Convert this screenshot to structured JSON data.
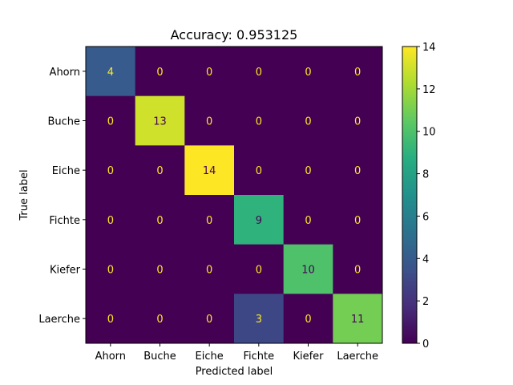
{
  "chart_data": {
    "type": "heatmap",
    "title": "Accuracy: 0.953125",
    "xlabel": "Predicted label",
    "ylabel": "True label",
    "x_categories": [
      "Ahorn",
      "Buche",
      "Eiche",
      "Fichte",
      "Kiefer",
      "Laerche"
    ],
    "y_categories": [
      "Ahorn",
      "Buche",
      "Eiche",
      "Fichte",
      "Kiefer",
      "Laerche"
    ],
    "values": [
      [
        4,
        0,
        0,
        0,
        0,
        0
      ],
      [
        0,
        13,
        0,
        0,
        0,
        0
      ],
      [
        0,
        0,
        14,
        0,
        0,
        0
      ],
      [
        0,
        0,
        0,
        9,
        0,
        0
      ],
      [
        0,
        0,
        0,
        0,
        10,
        0
      ],
      [
        0,
        0,
        0,
        3,
        0,
        11
      ]
    ],
    "colorbar": {
      "min": 0,
      "max": 14,
      "ticks": [
        0,
        2,
        4,
        6,
        8,
        10,
        12,
        14
      ]
    },
    "colormap": "viridis",
    "grid": false
  }
}
